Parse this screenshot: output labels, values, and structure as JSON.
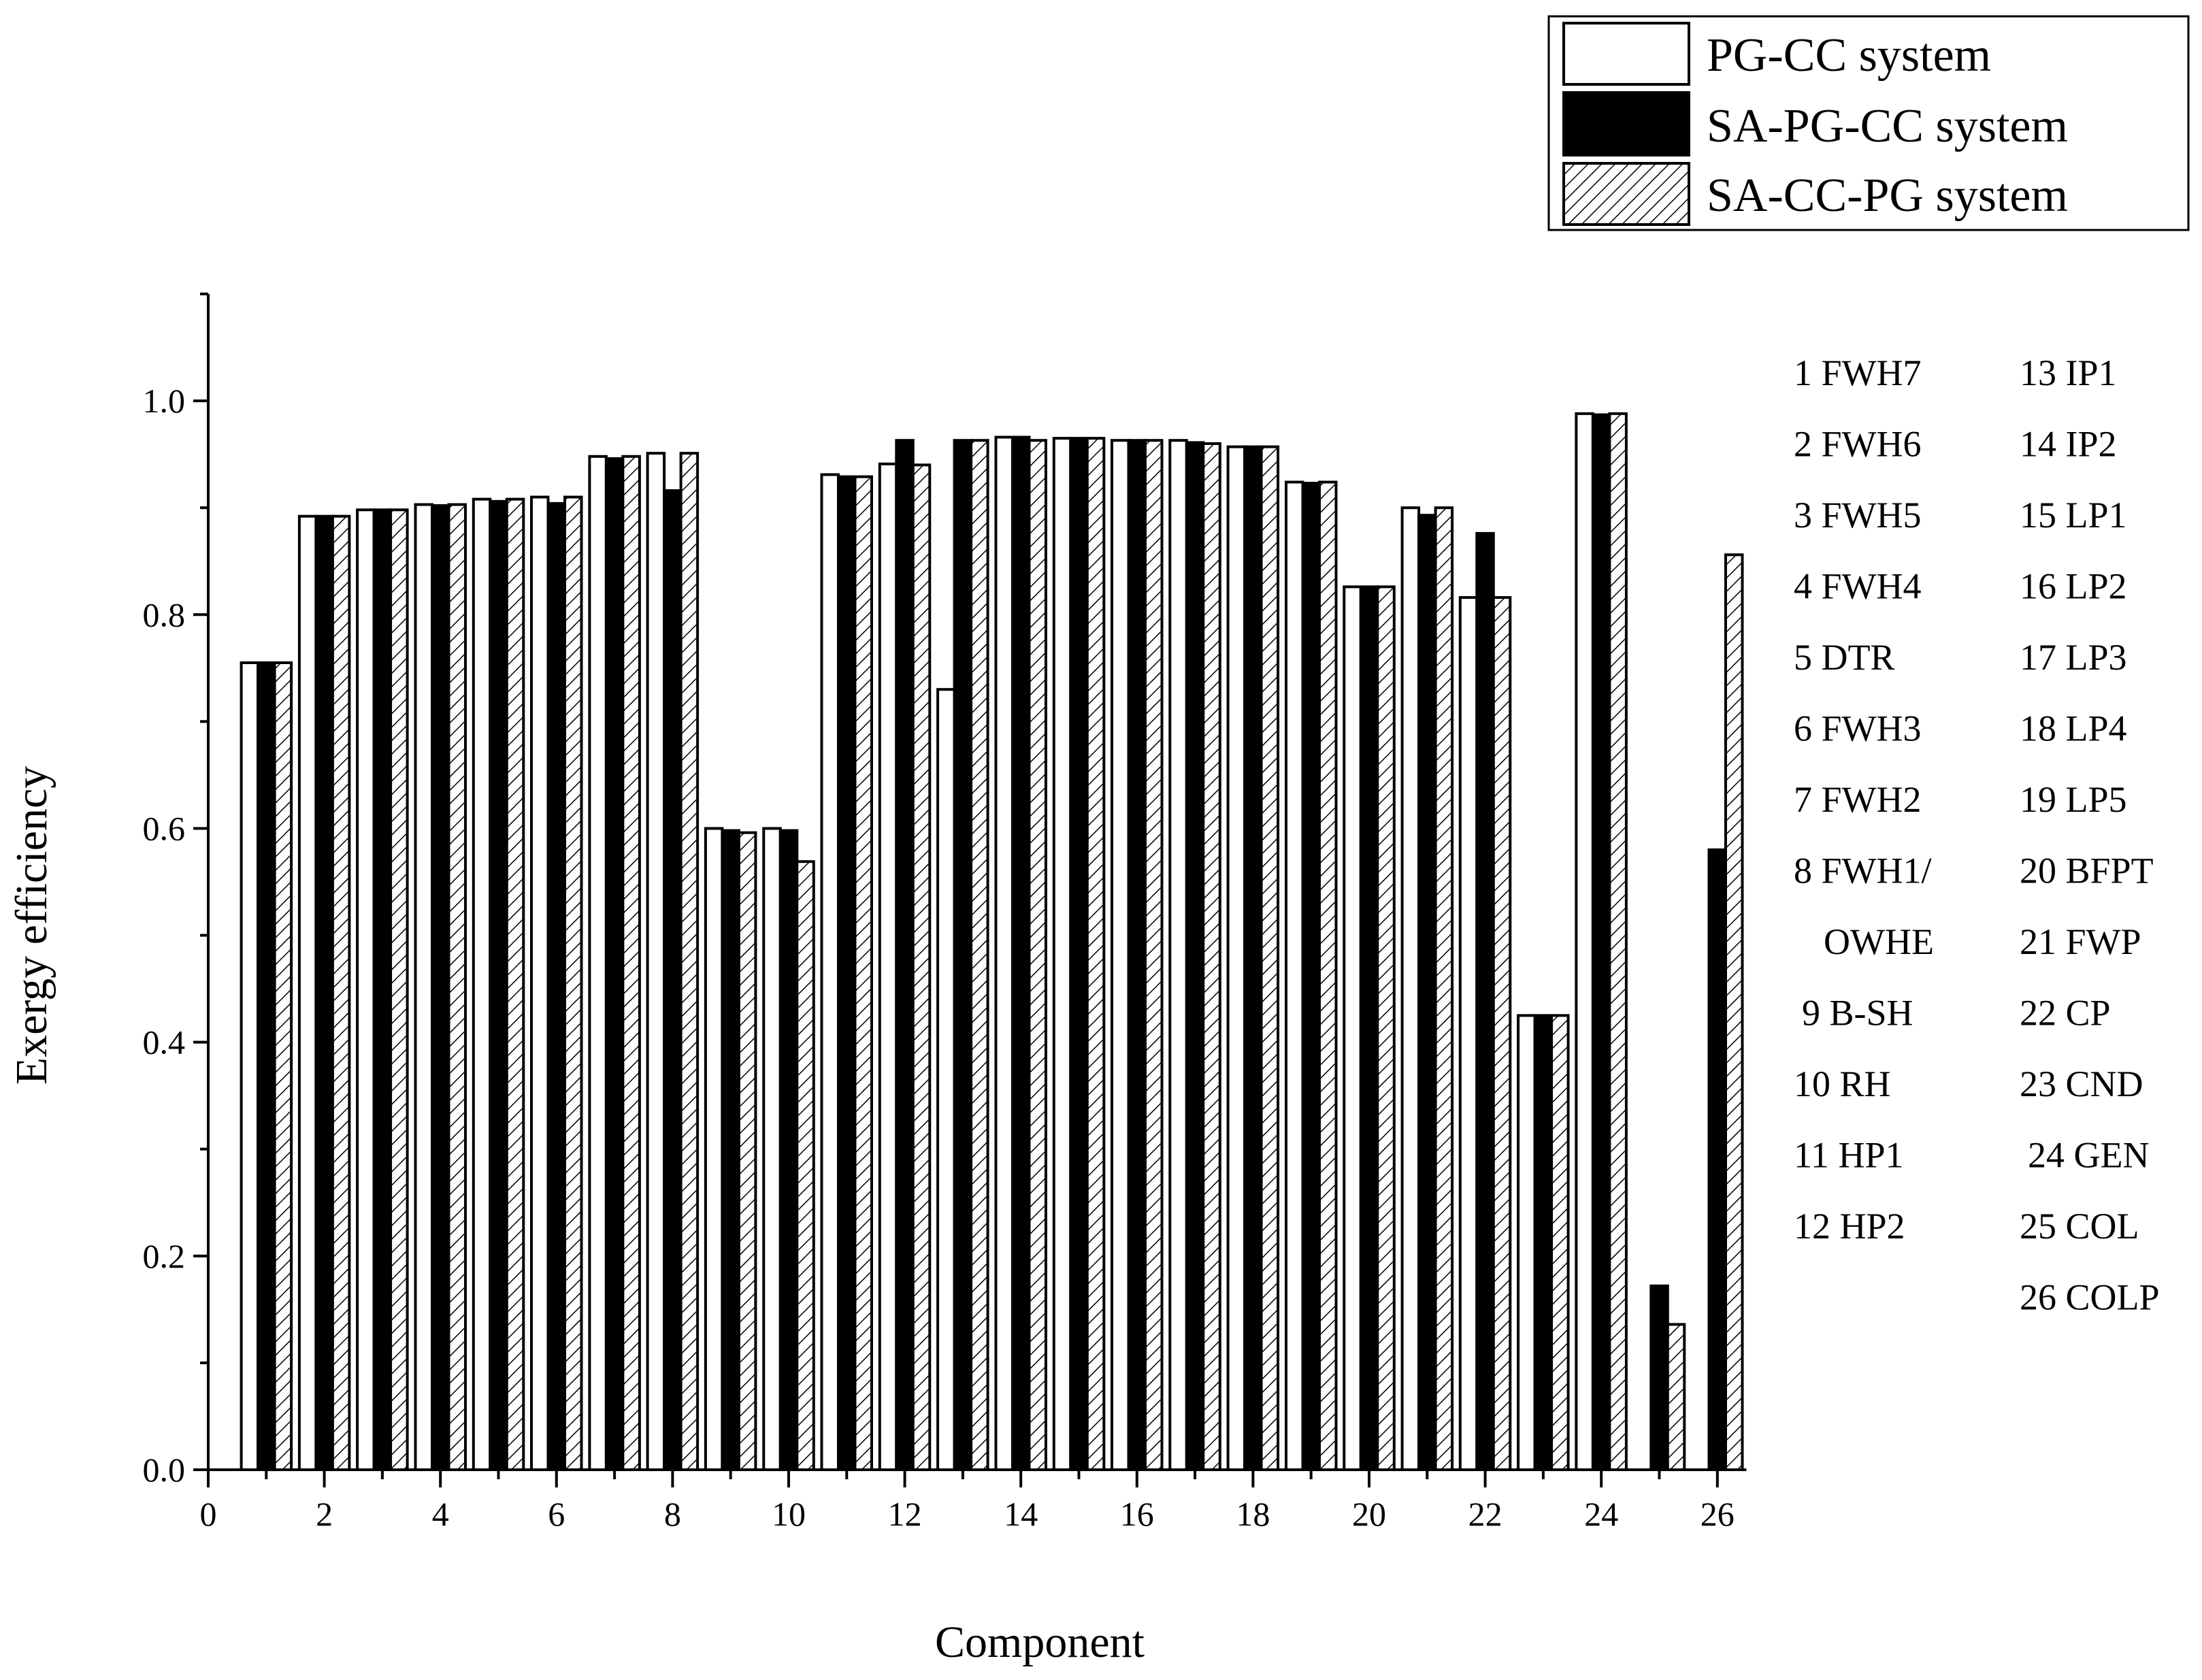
{
  "chart_data": {
    "type": "bar",
    "xlabel": "Component",
    "ylabel": "Exergy efficiency",
    "xlim": [
      0,
      26.5
    ],
    "ylim": [
      0,
      1.1
    ],
    "x_ticks": [
      "0",
      "2",
      "4",
      "6",
      "8",
      "10",
      "12",
      "14",
      "16",
      "18",
      "20",
      "22",
      "24",
      "26"
    ],
    "y_ticks": [
      "0.0",
      "0.2",
      "0.4",
      "0.6",
      "0.8",
      "1.0"
    ],
    "categories": [
      "1",
      "2",
      "3",
      "4",
      "5",
      "6",
      "7",
      "8",
      "9",
      "10",
      "11",
      "12",
      "13",
      "14",
      "15",
      "16",
      "17",
      "18",
      "19",
      "20",
      "21",
      "22",
      "23",
      "24",
      "25",
      "26"
    ],
    "series": [
      {
        "name": "PG-CC system",
        "pattern": "white",
        "values": [
          0.755,
          0.892,
          0.898,
          0.903,
          0.908,
          0.91,
          0.948,
          0.951,
          0.6,
          0.6,
          0.931,
          0.941,
          0.73,
          0.966,
          0.965,
          0.963,
          0.963,
          0.957,
          0.924,
          0.826,
          0.9,
          0.816,
          0.425,
          0.988,
          null,
          null
        ]
      },
      {
        "name": "SA-PG-CC system",
        "pattern": "black",
        "values": [
          0.755,
          0.892,
          0.898,
          0.902,
          0.906,
          0.904,
          0.946,
          0.916,
          0.598,
          0.598,
          0.929,
          0.963,
          0.963,
          0.966,
          0.965,
          0.963,
          0.961,
          0.957,
          0.923,
          0.826,
          0.893,
          0.876,
          0.425,
          0.987,
          0.172,
          0.58
        ]
      },
      {
        "name": "SA-CC-PG system",
        "pattern": "hatched",
        "values": [
          0.755,
          0.892,
          0.898,
          0.903,
          0.908,
          0.91,
          0.948,
          0.951,
          0.596,
          0.569,
          0.929,
          0.94,
          0.963,
          0.963,
          0.965,
          0.963,
          0.96,
          0.957,
          0.924,
          0.826,
          0.9,
          0.816,
          0.425,
          0.988,
          0.136,
          0.856
        ]
      }
    ],
    "legend_position": "top-right, above plot",
    "grid": false
  },
  "component_key": [
    "1 FWH7",
    "2 FWH6",
    "3 FWH5",
    "4 FWH4",
    "5 DTR",
    "6 FWH3",
    "7 FWH2",
    "8 FWH1/",
    "OWHE",
    "9 B-SH",
    "10 RH",
    "11 HP1",
    "12 HP2",
    "13 IP1",
    "14 IP2",
    "15 LP1",
    "16 LP2",
    "17 LP3",
    "18 LP4",
    "19 LP5",
    "20 BFPT",
    "21 FWP",
    "22 CP",
    "23 CND",
    "24 GEN",
    "25 COL",
    "26 COLP"
  ],
  "colors": {
    "bar_stroke": "#000000",
    "black_fill": "#000000",
    "white_fill": "#ffffff"
  }
}
